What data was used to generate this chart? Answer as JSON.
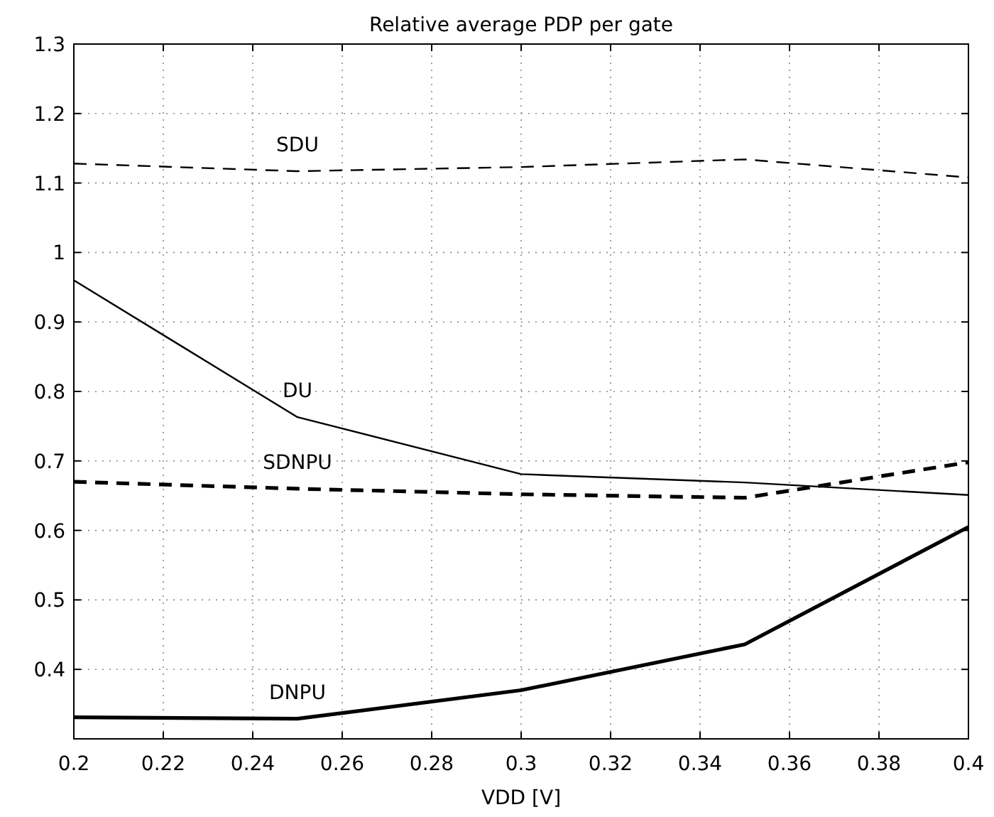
{
  "chart_data": {
    "type": "line",
    "title": "Relative average PDP per gate",
    "xlabel": "VDD [V]",
    "x": [
      0.2,
      0.25,
      0.3,
      0.35,
      0.4
    ],
    "series": [
      {
        "name": "SDU",
        "color": "#000000",
        "line_style": "dashed",
        "values": [
          1.128,
          1.117,
          1.123,
          1.134,
          1.108
        ]
      },
      {
        "name": "DU",
        "color": "#000000",
        "line_style": "solid",
        "values": [
          0.96,
          0.763,
          0.681,
          0.669,
          0.651
        ]
      },
      {
        "name": "SDNPU",
        "color": "#000000",
        "line_style": "dashed",
        "values": [
          0.67,
          0.66,
          0.652,
          0.647,
          0.698
        ]
      },
      {
        "name": "DNPU",
        "color": "#000000",
        "line_style": "solid",
        "values": [
          0.331,
          0.329,
          0.37,
          0.436,
          0.605
        ]
      }
    ],
    "xlim": [
      0.2,
      0.4
    ],
    "xticks": [
      0.2,
      0.22,
      0.24,
      0.26,
      0.28,
      0.3,
      0.32,
      0.34,
      0.36,
      0.38,
      0.4
    ],
    "ylim": [
      0.3,
      1.3
    ],
    "yticks": [
      0.4,
      0.5,
      0.6,
      0.7,
      0.8,
      0.9,
      1,
      1.1,
      1.2,
      1.3
    ],
    "grid": true,
    "legend": false,
    "marker": "none"
  }
}
